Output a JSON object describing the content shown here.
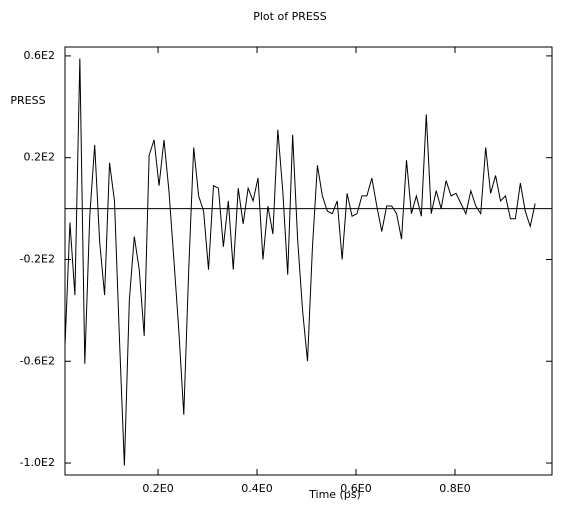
{
  "chart_data": {
    "type": "line",
    "title": "Plot of PRESS",
    "x_label": "Time (ps)",
    "y_label": "PRESS",
    "x": [
      0.012,
      0.022,
      0.032,
      0.042,
      0.052,
      0.062,
      0.072,
      0.082,
      0.092,
      0.102,
      0.112,
      0.122,
      0.132,
      0.142,
      0.152,
      0.162,
      0.172,
      0.182,
      0.192,
      0.202,
      0.212,
      0.222,
      0.232,
      0.242,
      0.252,
      0.262,
      0.272,
      0.282,
      0.292,
      0.302,
      0.312,
      0.322,
      0.332,
      0.342,
      0.352,
      0.362,
      0.372,
      0.382,
      0.392,
      0.402,
      0.412,
      0.422,
      0.432,
      0.442,
      0.452,
      0.462,
      0.472,
      0.482,
      0.492,
      0.502,
      0.512,
      0.522,
      0.532,
      0.542,
      0.552,
      0.562,
      0.572,
      0.582,
      0.592,
      0.602,
      0.612,
      0.622,
      0.632,
      0.642,
      0.652,
      0.662,
      0.672,
      0.682,
      0.692,
      0.702,
      0.712,
      0.722,
      0.732,
      0.742,
      0.752,
      0.762,
      0.772,
      0.782,
      0.792,
      0.802,
      0.812,
      0.822,
      0.832,
      0.842,
      0.852,
      0.862,
      0.872,
      0.882,
      0.892,
      0.902,
      0.912,
      0.922,
      0.932,
      0.942,
      0.952,
      0.962
    ],
    "series": [
      {
        "name": "PRESS",
        "color": "#000000",
        "values": [
          -54,
          -5.5,
          -34,
          59,
          -61,
          -3,
          25,
          -13,
          -34,
          18,
          3,
          -51,
          -101,
          -36,
          -11,
          -24,
          -50,
          21,
          27,
          9,
          27,
          7,
          -20,
          -48,
          -81,
          -24,
          24,
          5,
          -1,
          -24,
          9,
          8,
          -15,
          3,
          -24,
          8,
          -6,
          8,
          3,
          12,
          -20,
          1,
          -10,
          31,
          7,
          -26,
          29,
          -12,
          -40,
          -60,
          -15,
          17,
          5,
          -1,
          -2,
          3,
          -20,
          6,
          -3,
          -2,
          5,
          5,
          12,
          1,
          -9,
          1,
          1,
          -2,
          -12,
          19,
          -2,
          5,
          -3,
          37,
          -2,
          7,
          0,
          11,
          5,
          6,
          2,
          -2,
          7,
          1,
          -2,
          24,
          6,
          13,
          3,
          5,
          -4,
          -4,
          10,
          -1,
          -7,
          2
        ]
      }
    ],
    "xlim": [
      0.012,
      0.996
    ],
    "ylim": [
      -104.7,
      63.5
    ],
    "xticks": [
      {
        "value": 0.2,
        "label": "0.2E0"
      },
      {
        "value": 0.4,
        "label": "0.4E0"
      },
      {
        "value": 0.6,
        "label": "0.6E0"
      },
      {
        "value": 0.8,
        "label": "0.8E0"
      }
    ],
    "yticks": [
      {
        "value": 60,
        "label": "0.6E2"
      },
      {
        "value": 20,
        "label": "0.2E2"
      },
      {
        "value": -20,
        "label": "-0.2E2"
      },
      {
        "value": -60,
        "label": "-0.6E2"
      },
      {
        "value": -100,
        "label": "-1.0E2"
      }
    ]
  }
}
